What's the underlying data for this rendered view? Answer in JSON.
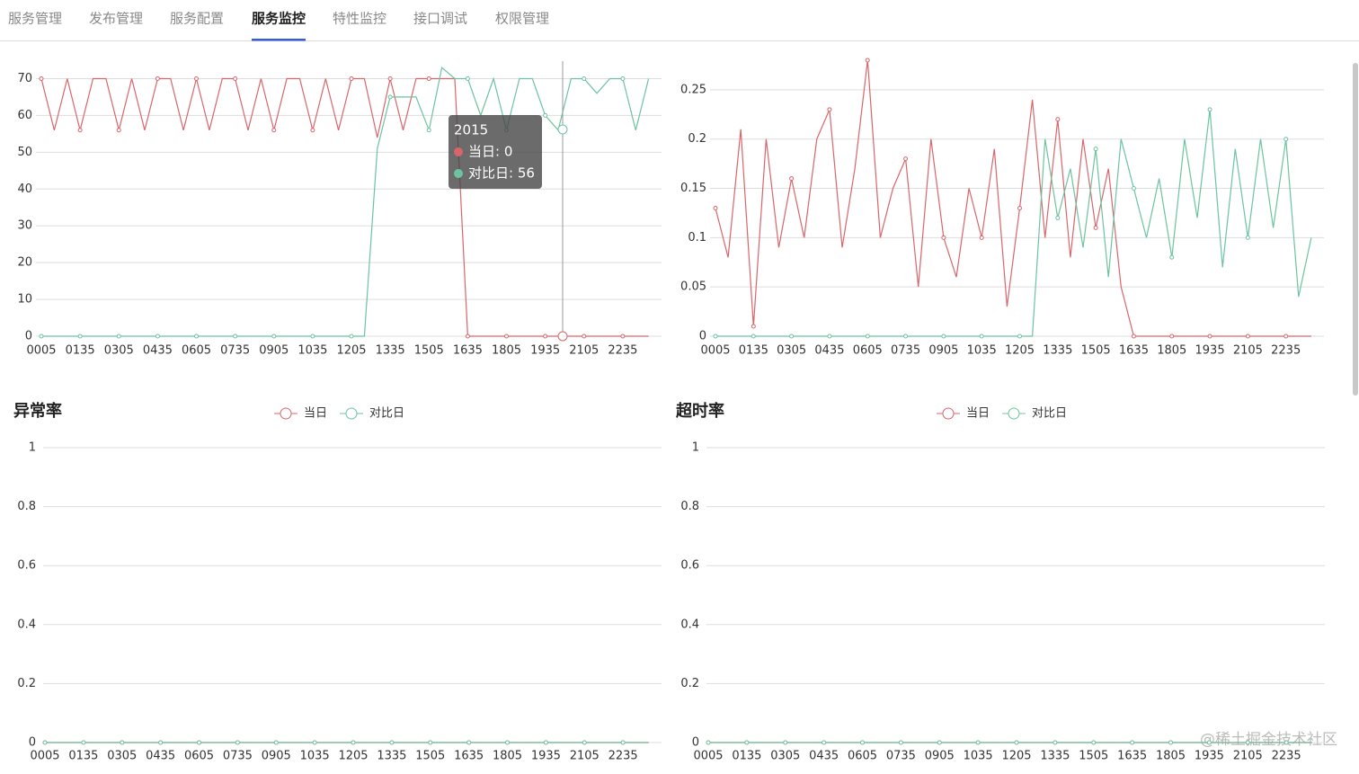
{
  "tabs": [
    "服务管理",
    "发布管理",
    "服务配置",
    "服务监控",
    "特性监控",
    "接口调试",
    "权限管理"
  ],
  "active_tab": 3,
  "watermark": "@稀土掘金技术社区",
  "chart_data": [
    {
      "type": "line",
      "categories": [
        "0005",
        null,
        null,
        "0135",
        null,
        null,
        "0305",
        null,
        null,
        "0435",
        null,
        null,
        "0605",
        null,
        null,
        "0735",
        null,
        null,
        "0905",
        null,
        null,
        "1035",
        null,
        null,
        "1205",
        null,
        null,
        "1335",
        null,
        null,
        "1505",
        null,
        null,
        "1635",
        null,
        null,
        "1805",
        null,
        null,
        "1935",
        null,
        null,
        "2105",
        null,
        null,
        "2235",
        null,
        null
      ],
      "series": [
        {
          "color": "#d9656b",
          "values": [
            70,
            56,
            70,
            56,
            70,
            70,
            56,
            70,
            56,
            70,
            70,
            56,
            70,
            56,
            70,
            70,
            56,
            70,
            56,
            70,
            70,
            56,
            70,
            56,
            70,
            70,
            54,
            70,
            56,
            70,
            70,
            70,
            70,
            0,
            0,
            0,
            0,
            0,
            0,
            0,
            0,
            0,
            0,
            0,
            0,
            0,
            0,
            0
          ]
        },
        {
          "color": "#6cc3a0",
          "values": [
            0,
            0,
            0,
            0,
            0,
            0,
            0,
            0,
            0,
            0,
            0,
            0,
            0,
            0,
            0,
            0,
            0,
            0,
            0,
            0,
            0,
            0,
            0,
            0,
            0,
            0,
            51,
            65,
            65,
            65,
            56,
            73,
            70,
            70,
            60,
            70,
            56,
            70,
            70,
            60,
            56,
            70,
            70,
            66,
            70,
            70,
            56,
            70
          ]
        }
      ],
      "ylim": [
        0,
        75
      ],
      "yticks": [
        0,
        10,
        20,
        30,
        40,
        50,
        60,
        70
      ],
      "grid": true,
      "tooltip": {
        "title": "2015",
        "lines": [
          "当日: 0",
          "对比日: 56"
        ]
      }
    },
    {
      "type": "line",
      "categories": [
        "0005",
        null,
        null,
        "0135",
        null,
        null,
        "0305",
        null,
        null,
        "0435",
        null,
        null,
        "0605",
        null,
        null,
        "0735",
        null,
        null,
        "0905",
        null,
        null,
        "1035",
        null,
        null,
        "1205",
        null,
        null,
        "1335",
        null,
        null,
        "1505",
        null,
        null,
        "1635",
        null,
        null,
        "1805",
        null,
        null,
        "1935",
        null,
        null,
        "2105",
        null,
        null,
        "2235",
        null,
        null
      ],
      "series": [
        {
          "color": "#d9656b",
          "values": [
            0.13,
            0.08,
            0.21,
            0.01,
            0.2,
            0.09,
            0.16,
            0.1,
            0.2,
            0.23,
            0.09,
            0.17,
            0.28,
            0.1,
            0.15,
            0.18,
            0.05,
            0.2,
            0.1,
            0.06,
            0.15,
            0.1,
            0.19,
            0.03,
            0.13,
            0.24,
            0.1,
            0.22,
            0.08,
            0.2,
            0.11,
            0.17,
            0.05,
            0,
            0,
            0,
            0,
            0,
            0,
            0,
            0,
            0,
            0,
            0,
            0,
            0,
            0,
            0
          ]
        },
        {
          "color": "#6cc3a0",
          "values": [
            0,
            0,
            0,
            0,
            0,
            0,
            0,
            0,
            0,
            0,
            0,
            0,
            0,
            0,
            0,
            0,
            0,
            0,
            0,
            0,
            0,
            0,
            0,
            0,
            0,
            0,
            0.2,
            0.12,
            0.17,
            0.09,
            0.19,
            0.06,
            0.2,
            0.15,
            0.1,
            0.16,
            0.08,
            0.2,
            0.12,
            0.23,
            0.07,
            0.19,
            0.1,
            0.2,
            0.11,
            0.2,
            0.04,
            0.1
          ]
        }
      ],
      "ylim": [
        0,
        0.28
      ],
      "yticks": [
        0,
        0.05,
        0.1,
        0.15,
        0.2,
        0.25
      ],
      "grid": true
    },
    {
      "type": "line",
      "title": "异常率",
      "categories": [
        "0005",
        null,
        null,
        "0135",
        null,
        null,
        "0305",
        null,
        null,
        "0435",
        null,
        null,
        "0605",
        null,
        null,
        "0735",
        null,
        null,
        "0905",
        null,
        null,
        "1035",
        null,
        null,
        "1205",
        null,
        null,
        "1335",
        null,
        null,
        "1505",
        null,
        null,
        "1635",
        null,
        null,
        "1805",
        null,
        null,
        "1935",
        null,
        null,
        "2105",
        null,
        null,
        "2235",
        null,
        null
      ],
      "series": [
        {
          "name": "当日",
          "color": "#d9656b",
          "values": [
            0,
            0,
            0,
            0,
            0,
            0,
            0,
            0,
            0,
            0,
            0,
            0,
            0,
            0,
            0,
            0,
            0,
            0,
            0,
            0,
            0,
            0,
            0,
            0,
            0,
            0,
            0,
            0,
            0,
            0,
            0,
            0,
            0,
            0,
            0,
            0,
            0,
            0,
            0,
            0,
            0,
            0,
            0,
            0,
            0,
            0,
            0,
            0
          ]
        },
        {
          "name": "对比日",
          "color": "#6cc3a0",
          "values": [
            0,
            0,
            0,
            0,
            0,
            0,
            0,
            0,
            0,
            0,
            0,
            0,
            0,
            0,
            0,
            0,
            0,
            0,
            0,
            0,
            0,
            0,
            0,
            0,
            0,
            0,
            0,
            0,
            0,
            0,
            0,
            0,
            0,
            0,
            0,
            0,
            0,
            0,
            0,
            0,
            0,
            0,
            0,
            0,
            0,
            0,
            0,
            0
          ]
        }
      ],
      "ylim": [
        0,
        1
      ],
      "yticks": [
        0,
        0.2,
        0.4,
        0.6,
        0.8,
        1
      ],
      "grid": true
    },
    {
      "type": "line",
      "title": "超时率",
      "categories": [
        "0005",
        null,
        null,
        "0135",
        null,
        null,
        "0305",
        null,
        null,
        "0435",
        null,
        null,
        "0605",
        null,
        null,
        "0735",
        null,
        null,
        "0905",
        null,
        null,
        "1035",
        null,
        null,
        "1205",
        null,
        null,
        "1335",
        null,
        null,
        "1505",
        null,
        null,
        "1635",
        null,
        null,
        "1805",
        null,
        null,
        "1935",
        null,
        null,
        "2105",
        null,
        null,
        "2235",
        null,
        null
      ],
      "series": [
        {
          "name": "当日",
          "color": "#d9656b",
          "values": [
            0,
            0,
            0,
            0,
            0,
            0,
            0,
            0,
            0,
            0,
            0,
            0,
            0,
            0,
            0,
            0,
            0,
            0,
            0,
            0,
            0,
            0,
            0,
            0,
            0,
            0,
            0,
            0,
            0,
            0,
            0,
            0,
            0,
            0,
            0,
            0,
            0,
            0,
            0,
            0,
            0,
            0,
            0,
            0,
            0,
            0,
            0,
            0
          ]
        },
        {
          "name": "对比日",
          "color": "#6cc3a0",
          "values": [
            0,
            0,
            0,
            0,
            0,
            0,
            0,
            0,
            0,
            0,
            0,
            0,
            0,
            0,
            0,
            0,
            0,
            0,
            0,
            0,
            0,
            0,
            0,
            0,
            0,
            0,
            0,
            0,
            0,
            0,
            0,
            0,
            0,
            0,
            0,
            0,
            0,
            0,
            0,
            0,
            0,
            0,
            0,
            0,
            0,
            0,
            0,
            0
          ]
        }
      ],
      "ylim": [
        0,
        1
      ],
      "yticks": [
        0,
        0.2,
        0.4,
        0.6,
        0.8,
        1
      ],
      "grid": true
    }
  ]
}
